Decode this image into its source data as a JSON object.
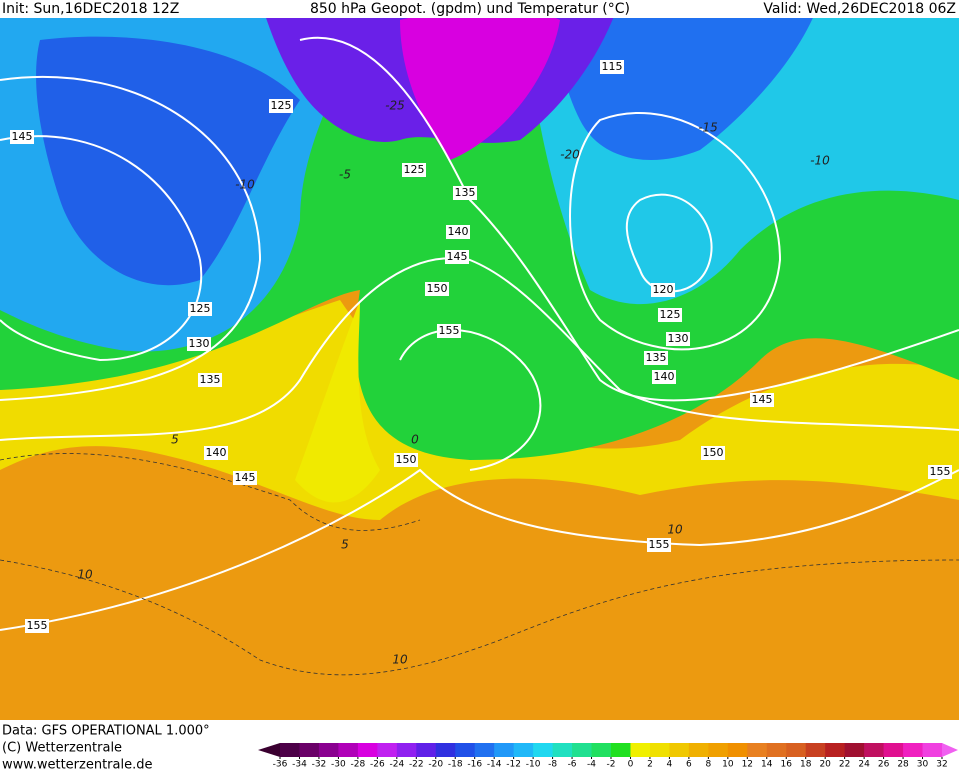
{
  "header": {
    "init": "Init: Sun,16DEC2018 12Z",
    "title": "850 hPa Geopot. (gpdm) und Temperatur (°C)",
    "valid": "Valid: Wed,26DEC2018 06Z"
  },
  "footer": {
    "source": "Data: GFS OPERATIONAL 1.000°",
    "copyright": "(C) Wetterzentrale",
    "url": "www.wetterzentrale.de"
  },
  "geopotential_labels": [
    145,
    125,
    115,
    125,
    135,
    140,
    145,
    150,
    155,
    125,
    130,
    135,
    140,
    145,
    150,
    120,
    125,
    130,
    135,
    140,
    145,
    150,
    155,
    155,
    155
  ],
  "temperature_labels": [
    -10,
    -15,
    -10,
    -25,
    -20,
    -5,
    0,
    5,
    5,
    10,
    10,
    10
  ],
  "legend": {
    "ticks": [
      -36,
      -34,
      -32,
      -30,
      -28,
      -26,
      -24,
      -22,
      -20,
      -18,
      -16,
      -14,
      -12,
      -10,
      -8,
      -6,
      -4,
      -2,
      0,
      2,
      4,
      6,
      8,
      10,
      12,
      14,
      16,
      18,
      20,
      22,
      24,
      26,
      28,
      30,
      32
    ],
    "colors": [
      "#3a0030",
      "#4d0048",
      "#6a0068",
      "#8a0090",
      "#b000b8",
      "#d800e0",
      "#c020f0",
      "#9020f0",
      "#6020e8",
      "#3030e0",
      "#2050e8",
      "#2070f0",
      "#2098f8",
      "#20b8f8",
      "#20d8f0",
      "#20e0c0",
      "#20e090",
      "#20e060",
      "#20e020",
      "#f0f000",
      "#f0e000",
      "#f0c800",
      "#f0b000",
      "#f0a000",
      "#f09000",
      "#e88020",
      "#e07020",
      "#d86020",
      "#c84020",
      "#b82020",
      "#a01030",
      "#c01060",
      "#e01090",
      "#f020c0",
      "#f040e0",
      "#f060f0"
    ]
  }
}
